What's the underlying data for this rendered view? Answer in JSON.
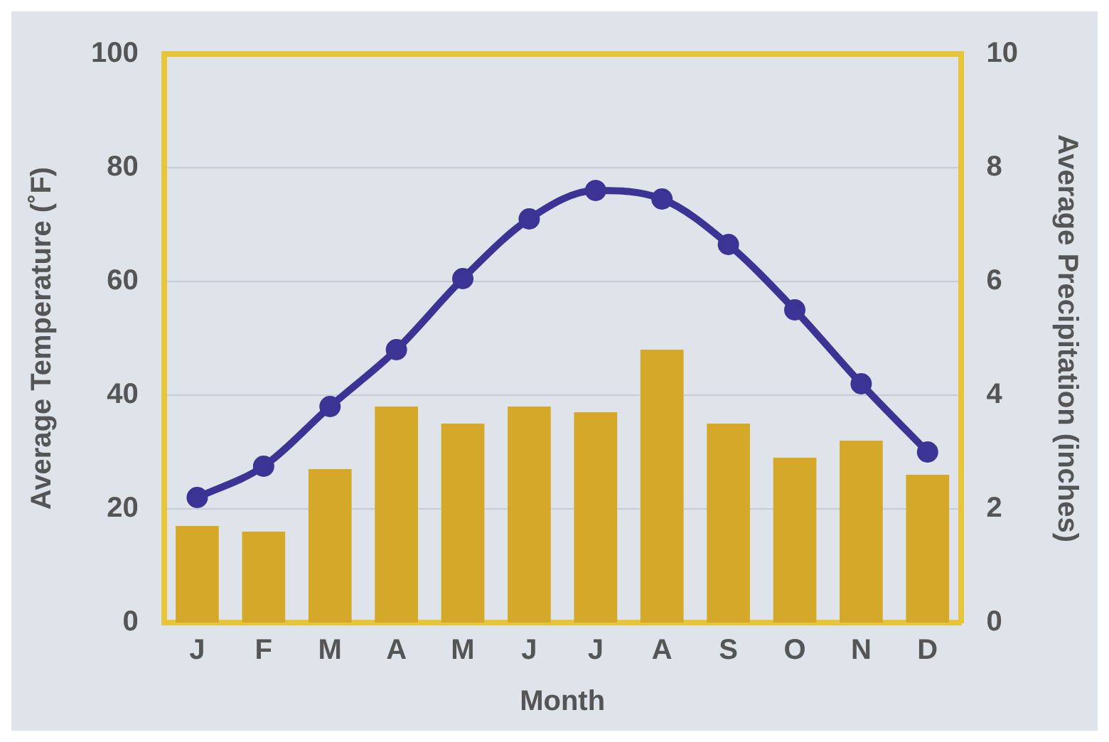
{
  "chart_data": {
    "type": "bar",
    "xlabel": "Month",
    "ylabel": "Average Temperature (˚F)",
    "y2label": "Average Precipitation (inches)",
    "categories": [
      "J",
      "F",
      "M",
      "A",
      "M",
      "J",
      "J",
      "A",
      "S",
      "O",
      "N",
      "D"
    ],
    "series": [
      {
        "axis": "y2",
        "color": "#d4a92a",
        "values": [
          1.7,
          1.6,
          2.7,
          3.8,
          3.5,
          3.8,
          3.7,
          4.8,
          3.5,
          2.9,
          3.2,
          2.6
        ]
      },
      {
        "type": "line",
        "axis": "y",
        "color": "#3b3495",
        "marker": "circle",
        "line_style": "solid",
        "values": [
          22,
          27.5,
          38,
          48,
          60.5,
          71,
          76,
          74.5,
          66.5,
          55,
          42,
          30
        ]
      }
    ],
    "ylim": [
      0,
      100
    ],
    "yticks": [
      0,
      20,
      40,
      60,
      80,
      100
    ],
    "y2lim": [
      0,
      10
    ],
    "y2ticks": [
      0,
      2,
      4,
      6,
      8,
      10
    ],
    "grid": "y",
    "legend": false
  }
}
